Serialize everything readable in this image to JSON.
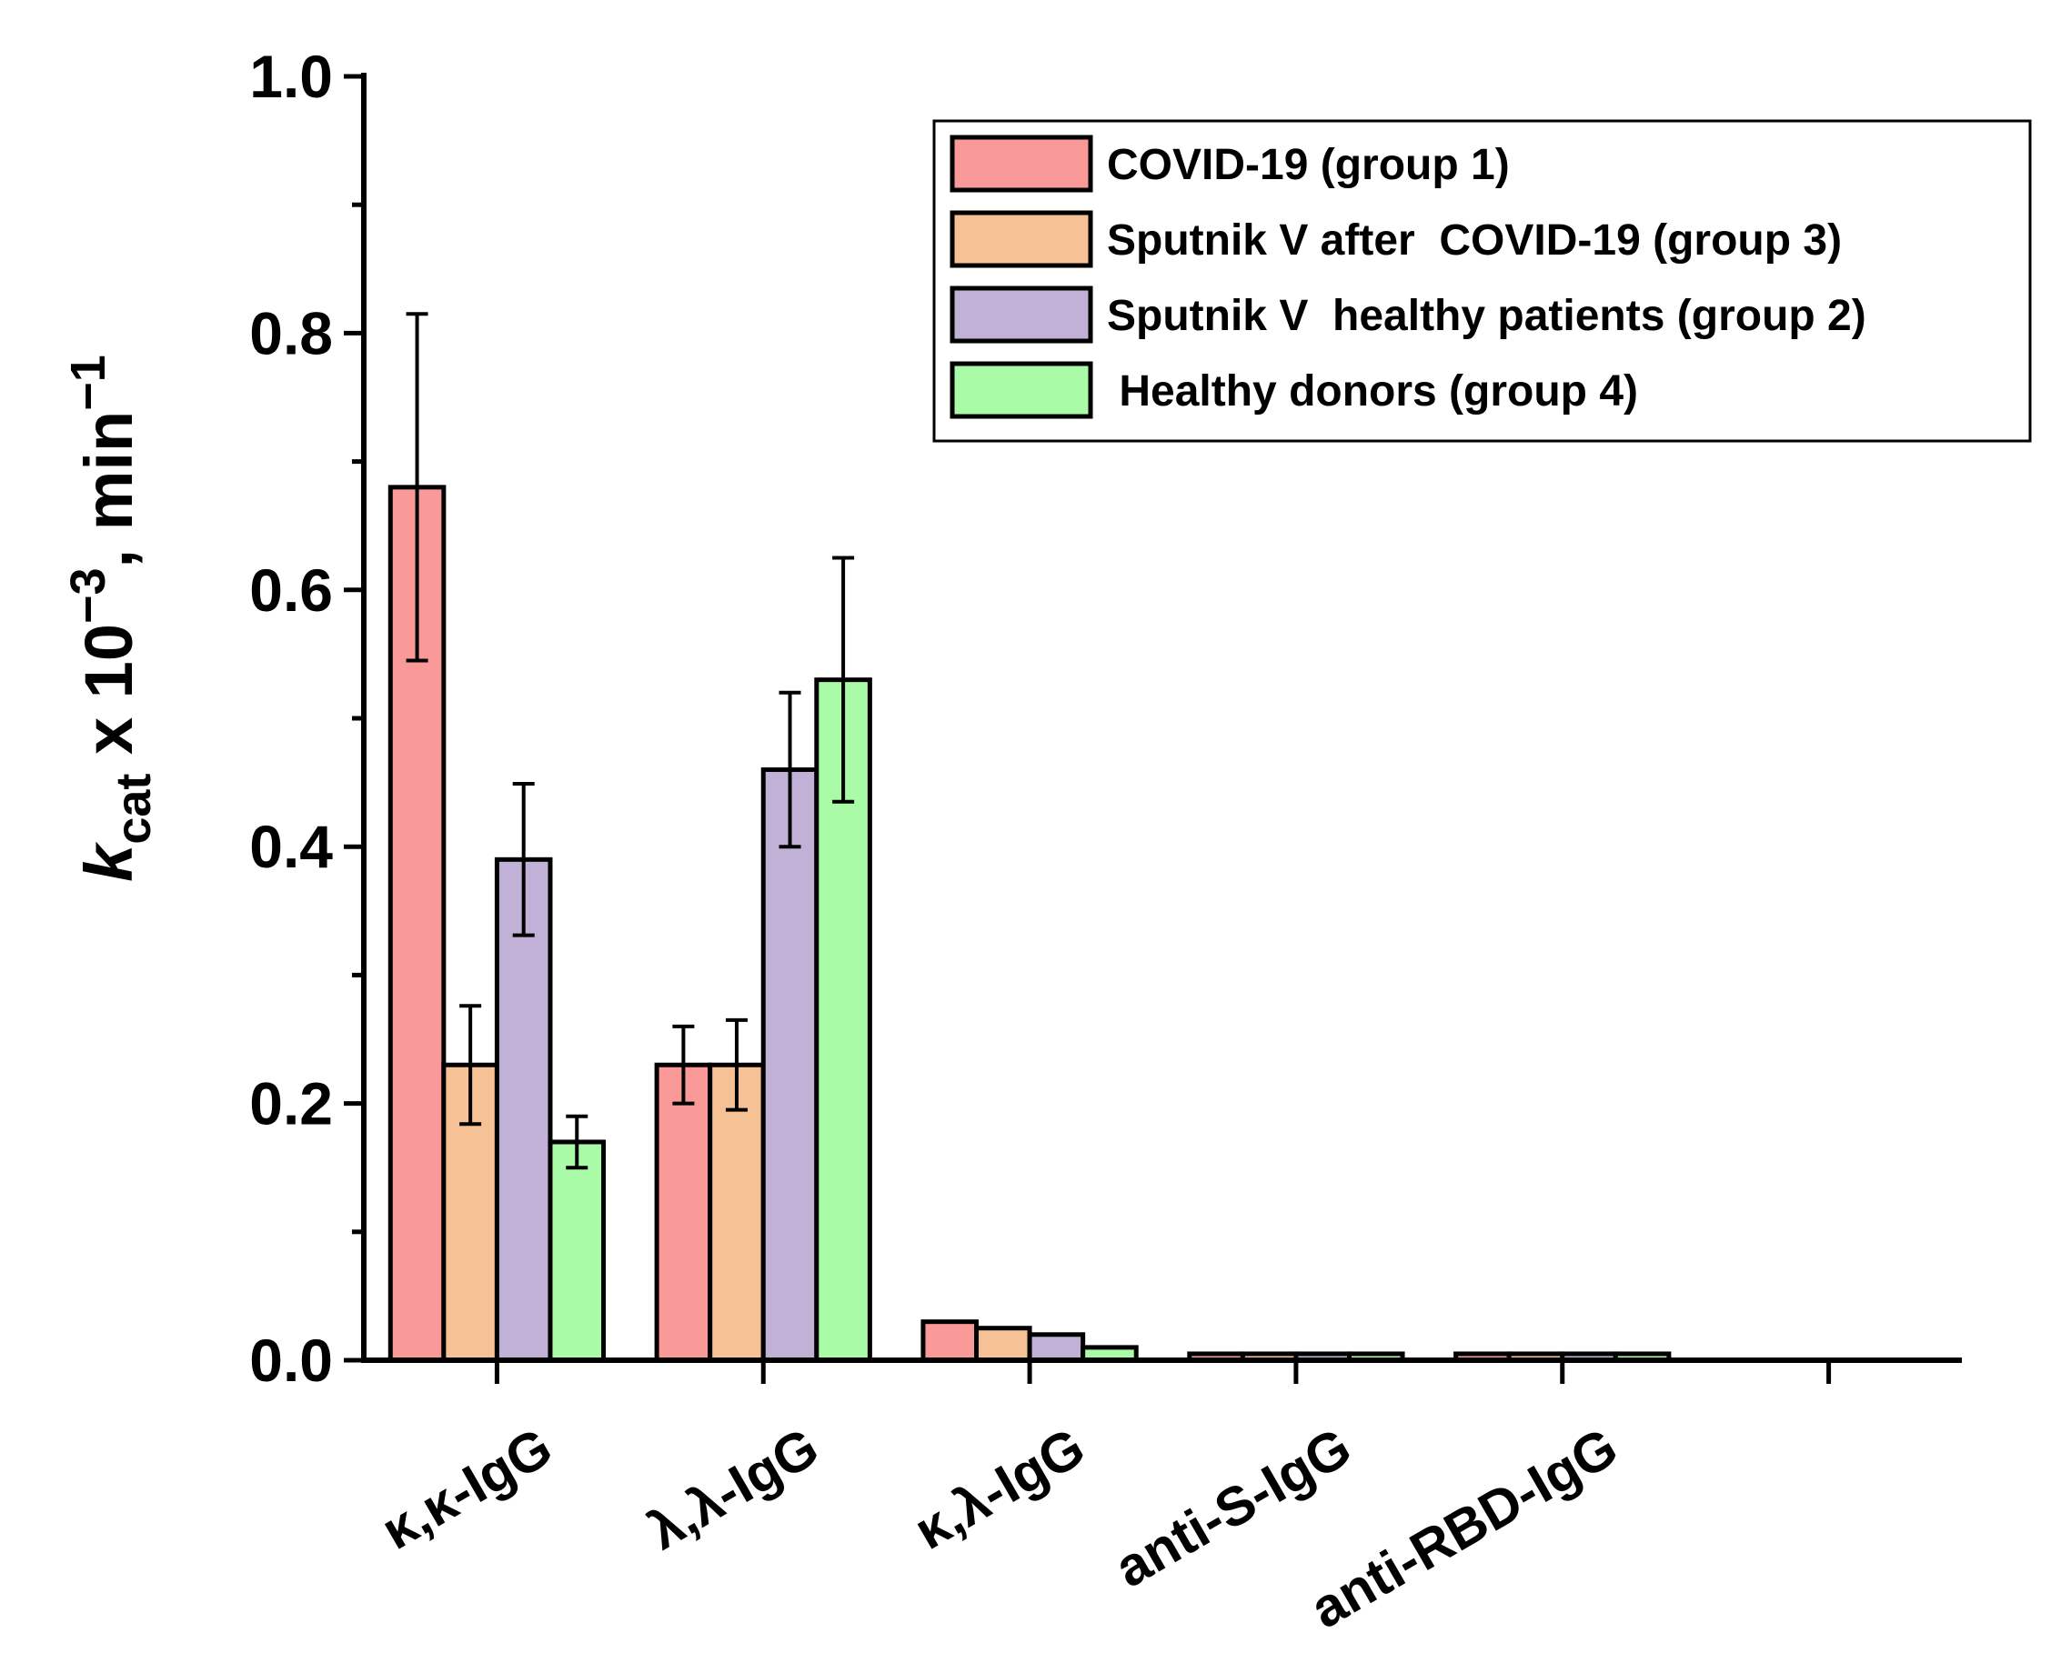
{
  "chart_data": {
    "type": "bar",
    "ylabel_parts": [
      "k",
      "cat",
      " x 10",
      "−3",
      ", min",
      "−1"
    ],
    "categories": [
      "κ,κ-IgG",
      "λ,λ-IgG",
      "κ,λ-IgG",
      "anti-S-IgG",
      "anti-RBD-IgG",
      null
    ],
    "series": [
      {
        "name": "COVID-19 (group 1)",
        "color": "#f99a98",
        "values": [
          0.68,
          0.23,
          0.03,
          0.005,
          0.005,
          null
        ],
        "errors": [
          0.135,
          0.03,
          null,
          null,
          null,
          null
        ]
      },
      {
        "name": "Sputnik V after  COVID-19 (group 3)",
        "color": "#f7c196",
        "values": [
          0.23,
          0.23,
          0.025,
          0.005,
          0.005,
          null
        ],
        "errors": [
          0.046,
          0.035,
          null,
          null,
          null,
          null
        ]
      },
      {
        "name": "Sputnik V  healthy patients (group 2)",
        "color": "#c1b1d7",
        "values": [
          0.39,
          0.46,
          0.02,
          0.005,
          0.005,
          null
        ],
        "errors": [
          0.059,
          0.06,
          null,
          null,
          null,
          null
        ]
      },
      {
        "name": " Healthy donors (group 4)",
        "color": "#a9fba8",
        "values": [
          0.17,
          0.53,
          0.01,
          0.005,
          0.005,
          null
        ],
        "errors": [
          0.02,
          0.095,
          null,
          null,
          null,
          null
        ]
      }
    ],
    "ylim": [
      0,
      1.0
    ],
    "yticks": [
      {
        "value": 0,
        "label": "0.0"
      },
      0.2,
      0.4,
      0.6,
      0.8,
      {
        "value": 1,
        "label": "1.0"
      }
    ],
    "minor_yticks": [
      0.1,
      0.3,
      0.5,
      0.7,
      0.9
    ],
    "legend": "upper right"
  }
}
